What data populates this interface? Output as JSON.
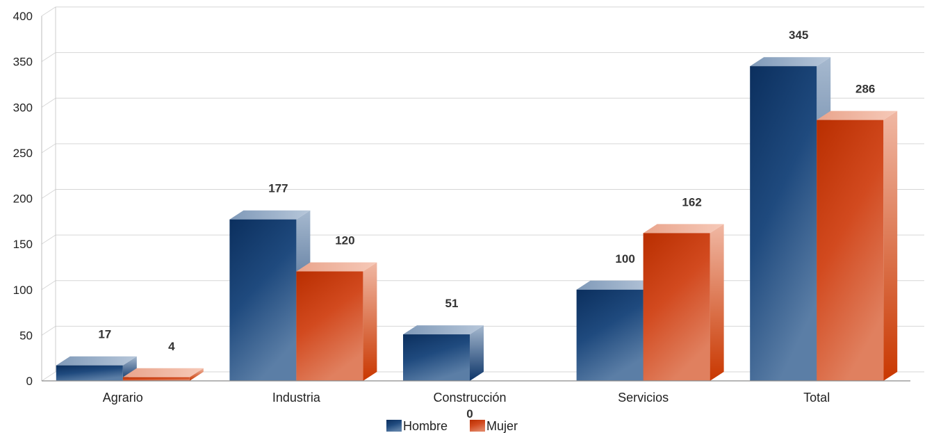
{
  "chart_data": {
    "type": "bar",
    "style": "3d-clustered",
    "categories": [
      "Agrario",
      "Industria",
      "Construcción",
      "Servicios",
      "Total"
    ],
    "series": [
      {
        "name": "Hombre",
        "values": [
          17,
          177,
          51,
          100,
          345
        ],
        "color": "#0f3a6e"
      },
      {
        "name": "Mujer",
        "values": [
          4,
          120,
          0,
          162,
          286
        ],
        "color": "#c3390f"
      }
    ],
    "ylim": [
      0,
      400
    ],
    "yticks": [
      0,
      50,
      100,
      150,
      200,
      250,
      300,
      350,
      400
    ],
    "grid": true,
    "legend_position": "bottom"
  }
}
